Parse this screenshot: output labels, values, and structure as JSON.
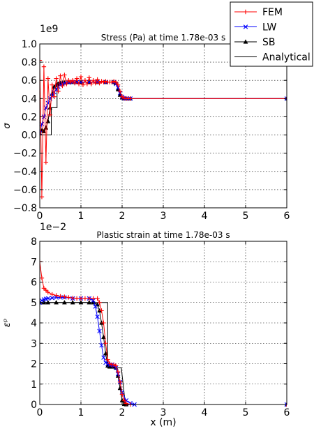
{
  "chart_data": [
    {
      "type": "line",
      "title": "Stress (Pa) at time 1.78e-03 s",
      "xlabel": "",
      "ylabel": "σ",
      "y_offset_label": "1e9",
      "xlim": [
        0,
        6
      ],
      "ylim": [
        -0.8,
        1.0
      ],
      "x_ticks": [
        0,
        1,
        2,
        3,
        4,
        5,
        6
      ],
      "y_ticks": [
        -0.8,
        -0.6,
        -0.4,
        -0.2,
        0.0,
        0.2,
        0.4,
        0.6,
        0.8,
        1.0
      ],
      "x_tick_labels": [
        "0",
        "1",
        "2",
        "3",
        "4",
        "5",
        "6"
      ],
      "y_tick_labels": [
        "−0.8",
        "−0.6",
        "−0.4",
        "−0.2",
        "0.0",
        "0.2",
        "0.4",
        "0.6",
        "0.8",
        "1.0"
      ],
      "grid": true,
      "series": [
        {
          "name": "FEM",
          "color": "#ff0000",
          "marker": "plus",
          "x": [
            0.0,
            0.05,
            0.1,
            0.15,
            0.2,
            0.25,
            0.3,
            0.35,
            0.4,
            0.45,
            0.5,
            0.55,
            0.6,
            0.65,
            0.7,
            0.75,
            0.8,
            0.85,
            0.9,
            0.95,
            1.0,
            1.05,
            1.1,
            1.15,
            1.2,
            1.25,
            1.3,
            1.35,
            1.4,
            1.45,
            1.5,
            1.55,
            1.6,
            1.65,
            1.7,
            1.75,
            1.8,
            1.85,
            1.9,
            1.95,
            2.0,
            2.05,
            2.1,
            2.15,
            2.2,
            6.0
          ],
          "y": [
            0.82,
            -0.68,
            0.75,
            -0.3,
            0.62,
            0.22,
            0.55,
            0.42,
            0.62,
            0.48,
            0.65,
            0.54,
            0.66,
            0.56,
            0.6,
            0.58,
            0.6,
            0.57,
            0.62,
            0.56,
            0.64,
            0.55,
            0.6,
            0.56,
            0.63,
            0.56,
            0.6,
            0.57,
            0.61,
            0.57,
            0.59,
            0.58,
            0.59,
            0.58,
            0.58,
            0.58,
            0.59,
            0.58,
            0.55,
            0.48,
            0.42,
            0.405,
            0.4,
            0.4,
            0.4,
            0.4
          ]
        },
        {
          "name": "LW",
          "color": "#0000ff",
          "marker": "x",
          "x": [
            0.0,
            0.05,
            0.1,
            0.15,
            0.2,
            0.25,
            0.3,
            0.35,
            0.4,
            0.45,
            0.5,
            0.55,
            0.6,
            0.7,
            0.8,
            0.9,
            1.0,
            1.2,
            1.4,
            1.6,
            1.8,
            1.85,
            1.9,
            1.95,
            2.0,
            2.05,
            2.1,
            2.2,
            6.0
          ],
          "y": [
            0.02,
            0.12,
            0.2,
            0.3,
            0.35,
            0.4,
            0.43,
            0.47,
            0.5,
            0.53,
            0.55,
            0.56,
            0.57,
            0.575,
            0.58,
            0.58,
            0.58,
            0.58,
            0.58,
            0.58,
            0.58,
            0.56,
            0.52,
            0.46,
            0.42,
            0.405,
            0.4,
            0.4,
            0.4
          ]
        },
        {
          "name": "SB",
          "color": "#000000",
          "marker": "triangle",
          "x": [
            0.0,
            0.05,
            0.1,
            0.15,
            0.2,
            0.25,
            0.3,
            0.35,
            0.4,
            0.45,
            0.5,
            0.55,
            0.6,
            0.7,
            0.8,
            0.9,
            1.0,
            1.2,
            1.4,
            1.6,
            1.8,
            1.85,
            1.9,
            1.95,
            2.0,
            2.05,
            2.1,
            2.2,
            6.0
          ],
          "y": [
            0.02,
            0.05,
            0.04,
            0.08,
            0.15,
            0.3,
            0.45,
            0.53,
            0.55,
            0.56,
            0.57,
            0.57,
            0.575,
            0.58,
            0.58,
            0.58,
            0.58,
            0.58,
            0.58,
            0.58,
            0.58,
            0.57,
            0.5,
            0.44,
            0.41,
            0.4,
            0.4,
            0.4,
            0.4
          ]
        },
        {
          "name": "Analytical",
          "color": "#000000",
          "marker": "none",
          "x": [
            0.0,
            0.28,
            0.28,
            0.42,
            0.42,
            1.85,
            1.98,
            6.0
          ],
          "y": [
            0.0,
            0.0,
            0.3,
            0.3,
            0.58,
            0.58,
            0.4,
            0.4
          ]
        }
      ]
    },
    {
      "type": "line",
      "title": "Plastic strain at time 1.78e-03 s",
      "xlabel": "x (m)",
      "ylabel": "εᵖ",
      "y_offset_label": "1e−2",
      "xlim": [
        0,
        6
      ],
      "ylim": [
        0,
        8
      ],
      "x_ticks": [
        0,
        1,
        2,
        3,
        4,
        5,
        6
      ],
      "y_ticks": [
        0,
        1,
        2,
        3,
        4,
        5,
        6,
        7,
        8
      ],
      "x_tick_labels": [
        "0",
        "1",
        "2",
        "3",
        "4",
        "5",
        "6"
      ],
      "y_tick_labels": [
        "0",
        "1",
        "2",
        "3",
        "4",
        "5",
        "6",
        "7",
        "8"
      ],
      "grid": true,
      "series": [
        {
          "name": "FEM",
          "color": "#ff0000",
          "marker": "plus",
          "x": [
            0.0,
            0.05,
            0.1,
            0.15,
            0.2,
            0.3,
            0.4,
            0.5,
            0.6,
            0.7,
            0.8,
            0.9,
            1.0,
            1.1,
            1.2,
            1.3,
            1.4,
            1.45,
            1.5,
            1.55,
            1.6,
            1.65,
            1.7,
            1.75,
            1.8,
            1.85,
            1.9,
            1.95,
            2.0,
            2.05,
            2.1,
            2.2,
            6.0
          ],
          "y": [
            7.0,
            6.2,
            5.7,
            5.6,
            5.5,
            5.4,
            5.35,
            5.3,
            5.28,
            5.25,
            5.22,
            5.2,
            5.2,
            5.2,
            5.2,
            5.2,
            5.2,
            5.0,
            4.6,
            4.0,
            3.0,
            2.2,
            2.0,
            1.95,
            1.95,
            1.9,
            1.6,
            1.1,
            0.5,
            0.2,
            0.05,
            0.0,
            0.0
          ]
        },
        {
          "name": "LW",
          "color": "#0000ff",
          "marker": "x",
          "x": [
            0.0,
            0.05,
            0.1,
            0.15,
            0.2,
            0.3,
            0.4,
            0.5,
            0.6,
            0.8,
            1.0,
            1.2,
            1.3,
            1.35,
            1.4,
            1.45,
            1.5,
            1.55,
            1.6,
            1.65,
            1.7,
            1.75,
            1.8,
            1.85,
            1.9,
            1.95,
            2.0,
            2.1,
            2.2,
            2.3,
            6.0
          ],
          "y": [
            5.0,
            5.1,
            5.15,
            5.18,
            5.2,
            5.22,
            5.25,
            5.25,
            5.25,
            5.2,
            5.2,
            5.2,
            5.1,
            4.8,
            4.3,
            3.6,
            2.9,
            2.3,
            2.05,
            2.0,
            1.95,
            1.95,
            1.9,
            1.8,
            1.5,
            1.1,
            0.6,
            0.2,
            0.06,
            0.0,
            0.0
          ]
        },
        {
          "name": "SB",
          "color": "#000000",
          "marker": "triangle",
          "x": [
            0.0,
            0.1,
            0.2,
            0.4,
            0.6,
            0.8,
            1.0,
            1.2,
            1.3,
            1.4,
            1.45,
            1.5,
            1.55,
            1.6,
            1.65,
            1.7,
            1.75,
            1.8,
            1.85,
            1.9,
            1.95,
            2.0,
            2.05,
            2.1,
            6.0
          ],
          "y": [
            5.0,
            5.0,
            5.0,
            5.0,
            5.0,
            5.0,
            5.0,
            5.0,
            5.0,
            4.9,
            4.6,
            4.0,
            3.3,
            2.5,
            1.9,
            1.85,
            1.85,
            1.85,
            1.8,
            1.4,
            0.8,
            0.2,
            0.02,
            0.0,
            0.0
          ]
        },
        {
          "name": "Analytical",
          "color": "#000000",
          "marker": "none",
          "x": [
            0.0,
            1.65,
            1.65,
            1.78,
            1.8,
            1.98,
            2.08,
            6.0
          ],
          "y": [
            5.0,
            5.0,
            1.8,
            1.8,
            1.8,
            1.8,
            0.0,
            0.0
          ]
        }
      ]
    }
  ],
  "legend": {
    "placement": "top-right",
    "entries": [
      {
        "name": "FEM",
        "color": "#ff0000",
        "marker": "plus"
      },
      {
        "name": "LW",
        "color": "#0000ff",
        "marker": "x"
      },
      {
        "name": "SB",
        "color": "#000000",
        "marker": "triangle"
      },
      {
        "name": "Analytical",
        "color": "#000000",
        "marker": "none"
      }
    ]
  }
}
